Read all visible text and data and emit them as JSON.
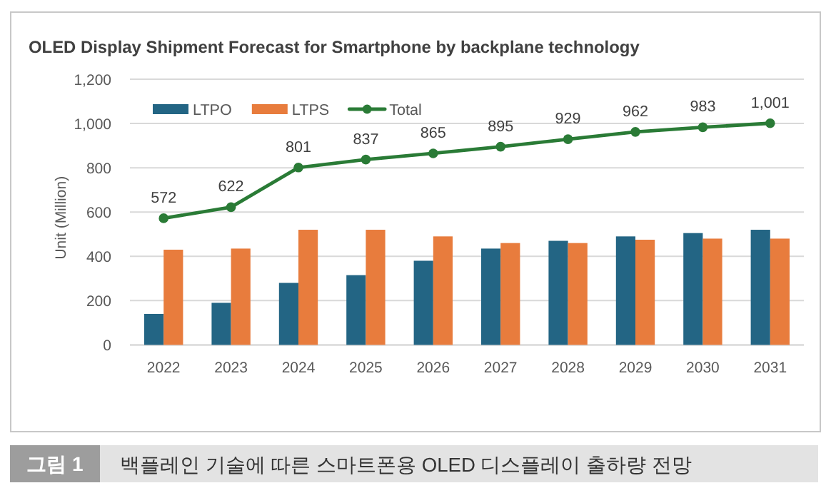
{
  "chart_data": {
    "type": "bar",
    "title": "OLED Display Shipment Forecast for Smartphone by backplane technology",
    "ylabel": "Unit (Million)",
    "categories": [
      "2022",
      "2023",
      "2024",
      "2025",
      "2026",
      "2027",
      "2028",
      "2029",
      "2030",
      "2031"
    ],
    "series": [
      {
        "name": "LTPO",
        "color": "#236584",
        "values": [
          140,
          190,
          280,
          315,
          380,
          435,
          470,
          490,
          505,
          520
        ]
      },
      {
        "name": "LTPS",
        "color": "#e87c3d",
        "values": [
          430,
          435,
          520,
          520,
          490,
          460,
          460,
          475,
          480,
          480
        ]
      },
      {
        "name": "Total",
        "type": "line",
        "color": "#2a7b36",
        "marker": "circle",
        "values": [
          572,
          622,
          801,
          837,
          865,
          895,
          929,
          962,
          983,
          1001
        ],
        "value_labels": [
          "572",
          "622",
          "801",
          "837",
          "865",
          "895",
          "929",
          "962",
          "983",
          "1,001"
        ]
      }
    ],
    "ylim": [
      0,
      1200
    ],
    "yticks": [
      0,
      200,
      400,
      600,
      800,
      {
        "value": 1000,
        "label": "1,000"
      },
      {
        "value": 1200,
        "label": "1,200"
      }
    ],
    "grid": "y",
    "legend": "top left",
    "annotations": [
      "그림 1",
      "백플레인 기술에 따른 스마트폰용 OLED 디스플레이 출하량 전망"
    ]
  }
}
